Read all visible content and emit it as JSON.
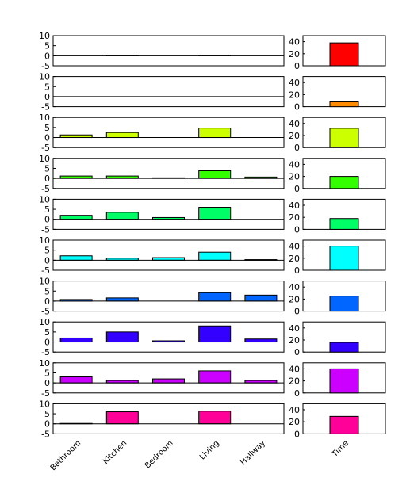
{
  "chart_data": {
    "type": "bar",
    "categories": [
      "Bathroom",
      "Kitchen",
      "Bedroom",
      "Living",
      "Hallway"
    ],
    "right_category": "Time",
    "left_ylim": [
      -5,
      10
    ],
    "left_yticks": [
      10,
      5,
      0,
      -5
    ],
    "right_ylim": [
      0,
      50
    ],
    "right_yticks": [
      40,
      20,
      0
    ],
    "grid": false,
    "rows": [
      {
        "color": "#ff0000",
        "values": [
          0,
          0.2,
          0,
          0.2,
          0
        ],
        "time": 38
      },
      {
        "color": "#ff8c00",
        "values": [
          0,
          0,
          0,
          0,
          0
        ],
        "time": 8
      },
      {
        "color": "#ccff00",
        "values": [
          1.3,
          2.5,
          0,
          4.7,
          0
        ],
        "time": 32
      },
      {
        "color": "#33ff00",
        "values": [
          1.2,
          1.2,
          0.3,
          3.8,
          0.7
        ],
        "time": 20
      },
      {
        "color": "#00ff66",
        "values": [
          2.0,
          3.5,
          0.9,
          6.0,
          0
        ],
        "time": 18
      },
      {
        "color": "#00ffff",
        "values": [
          2.2,
          1.0,
          1.3,
          4.0,
          0.3
        ],
        "time": 40
      },
      {
        "color": "#0066ff",
        "values": [
          0.8,
          1.6,
          0,
          4.2,
          3.0
        ],
        "time": 25
      },
      {
        "color": "#3300ff",
        "values": [
          2.0,
          5.0,
          0.6,
          8.0,
          1.5
        ],
        "time": 16
      },
      {
        "color": "#cc00ff",
        "values": [
          3.0,
          1.2,
          2.0,
          6.0,
          1.2
        ],
        "time": 40
      },
      {
        "color": "#ff0099",
        "values": [
          0.2,
          6.0,
          0,
          6.3,
          0
        ],
        "time": 29
      }
    ]
  }
}
